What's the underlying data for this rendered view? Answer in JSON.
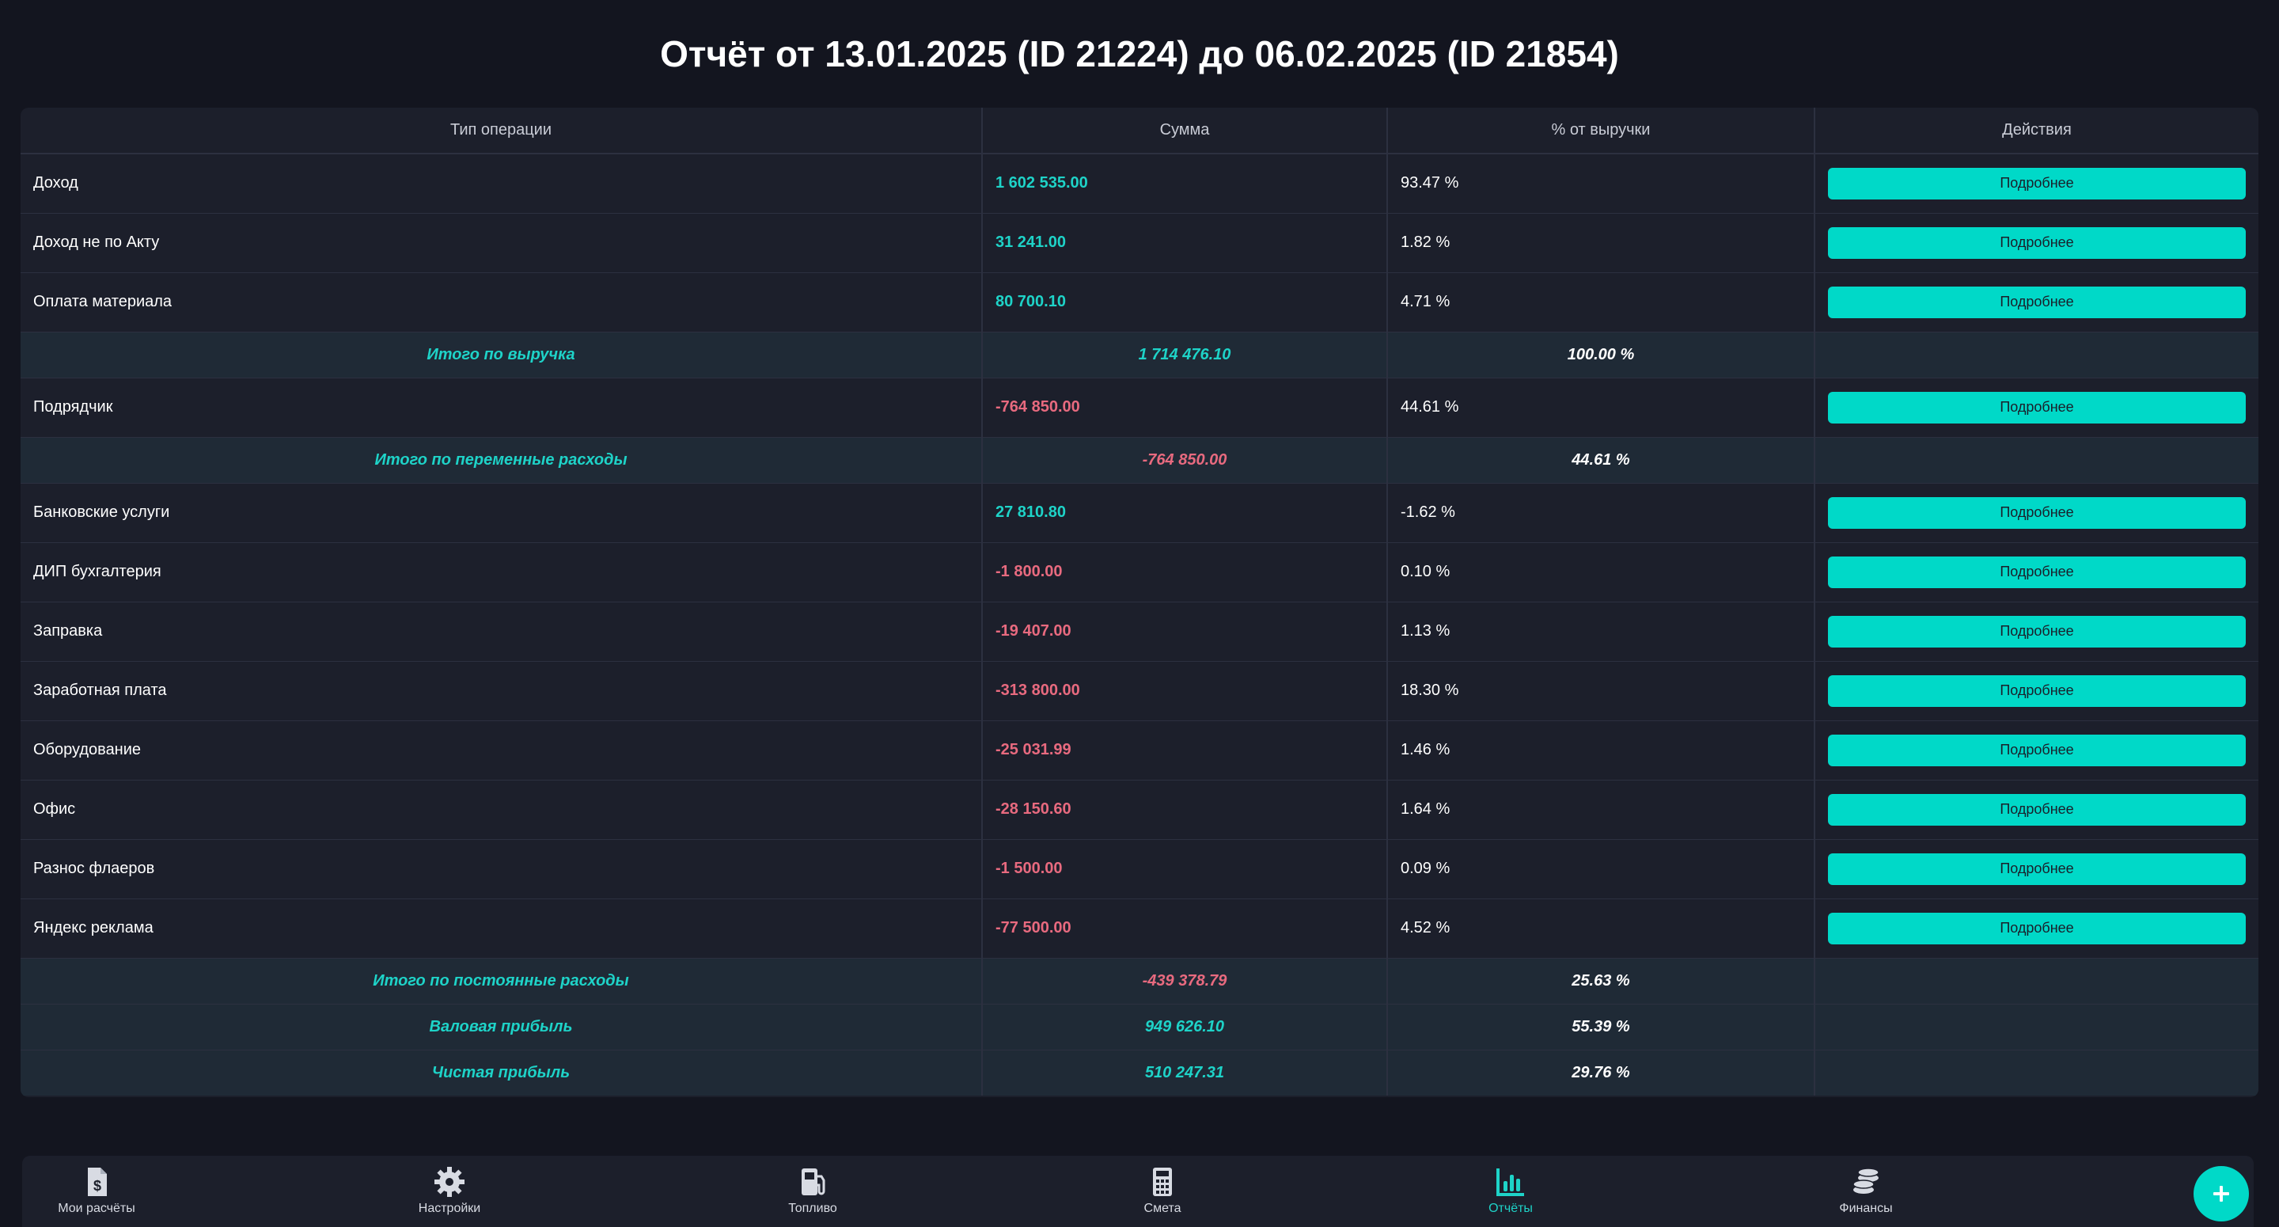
{
  "title": "Отчёт от 13.01.2025 (ID 21224) до 06.02.2025 (ID 21854)",
  "table": {
    "headers": [
      "Тип операции",
      "Сумма",
      "% от выручки",
      "Действия"
    ],
    "rows": [
      {
        "kind": "row",
        "type": "Доход",
        "sum": "1 602 535.00",
        "sign": "pos",
        "pct": "93.47 %",
        "action": "Подробнее"
      },
      {
        "kind": "row",
        "type": "Доход не по Акту",
        "sum": "31 241.00",
        "sign": "pos",
        "pct": "1.82 %",
        "action": "Подробнее"
      },
      {
        "kind": "row",
        "type": "Оплата материала",
        "sum": "80 700.10",
        "sign": "pos",
        "pct": "4.71 %",
        "action": "Подробнее"
      },
      {
        "kind": "total",
        "type": "Итого по выручка",
        "sum": "1 714 476.10",
        "sign": "pos",
        "pct": "100.00 %"
      },
      {
        "kind": "row",
        "type": "Подрядчик",
        "sum": "-764 850.00",
        "sign": "neg",
        "pct": "44.61 %",
        "action": "Подробнее"
      },
      {
        "kind": "total",
        "type": "Итого по переменные расходы",
        "sum": "-764 850.00",
        "sign": "neg",
        "pct": "44.61 %"
      },
      {
        "kind": "row",
        "type": "Банковские услуги",
        "sum": "27 810.80",
        "sign": "pos",
        "pct": "-1.62 %",
        "action": "Подробнее"
      },
      {
        "kind": "row",
        "type": "ДИП бухгалтерия",
        "sum": "-1 800.00",
        "sign": "neg",
        "pct": "0.10 %",
        "action": "Подробнее"
      },
      {
        "kind": "row",
        "type": "Заправка",
        "sum": "-19 407.00",
        "sign": "neg",
        "pct": "1.13 %",
        "action": "Подробнее"
      },
      {
        "kind": "row",
        "type": "Заработная плата",
        "sum": "-313 800.00",
        "sign": "neg",
        "pct": "18.30 %",
        "action": "Подробнее"
      },
      {
        "kind": "row",
        "type": "Оборудование",
        "sum": "-25 031.99",
        "sign": "neg",
        "pct": "1.46 %",
        "action": "Подробнее"
      },
      {
        "kind": "row",
        "type": "Офис",
        "sum": "-28 150.60",
        "sign": "neg",
        "pct": "1.64 %",
        "action": "Подробнее"
      },
      {
        "kind": "row",
        "type": "Разнос флаеров",
        "sum": "-1 500.00",
        "sign": "neg",
        "pct": "0.09 %",
        "action": "Подробнее"
      },
      {
        "kind": "row",
        "type": "Яндекс реклама",
        "sum": "-77 500.00",
        "sign": "neg",
        "pct": "4.52 %",
        "action": "Подробнее"
      },
      {
        "kind": "total",
        "type": "Итого по постоянные расходы",
        "sum": "-439 378.79",
        "sign": "neg",
        "pct": "25.63 %"
      },
      {
        "kind": "total",
        "type": "Валовая прибыль",
        "sum": "949 626.10",
        "sign": "pos",
        "pct": "55.39 %"
      },
      {
        "kind": "total",
        "type": "Чистая прибыль",
        "sum": "510 247.31",
        "sign": "pos",
        "pct": "29.76 %"
      }
    ]
  },
  "nav": {
    "items": [
      {
        "label": "Мои расчёты",
        "icon": "dollar-document-icon",
        "active": false
      },
      {
        "label": "Настройки",
        "icon": "gear-icon",
        "active": false
      },
      {
        "label": "Топливо",
        "icon": "fuel-pump-icon",
        "active": false
      },
      {
        "label": "Смета",
        "icon": "calculator-icon",
        "active": false
      },
      {
        "label": "Отчёты",
        "icon": "bar-chart-icon",
        "active": true
      },
      {
        "label": "Финансы",
        "icon": "coins-icon",
        "active": false
      }
    ],
    "fab_icon": "plus-icon"
  },
  "colors": {
    "accent": "#00d9c8",
    "positive": "#1ed3c8",
    "negative": "#e86a7f",
    "background": "#13151f",
    "panel": "#1c1f2b",
    "total_row": "#1f2a36"
  }
}
